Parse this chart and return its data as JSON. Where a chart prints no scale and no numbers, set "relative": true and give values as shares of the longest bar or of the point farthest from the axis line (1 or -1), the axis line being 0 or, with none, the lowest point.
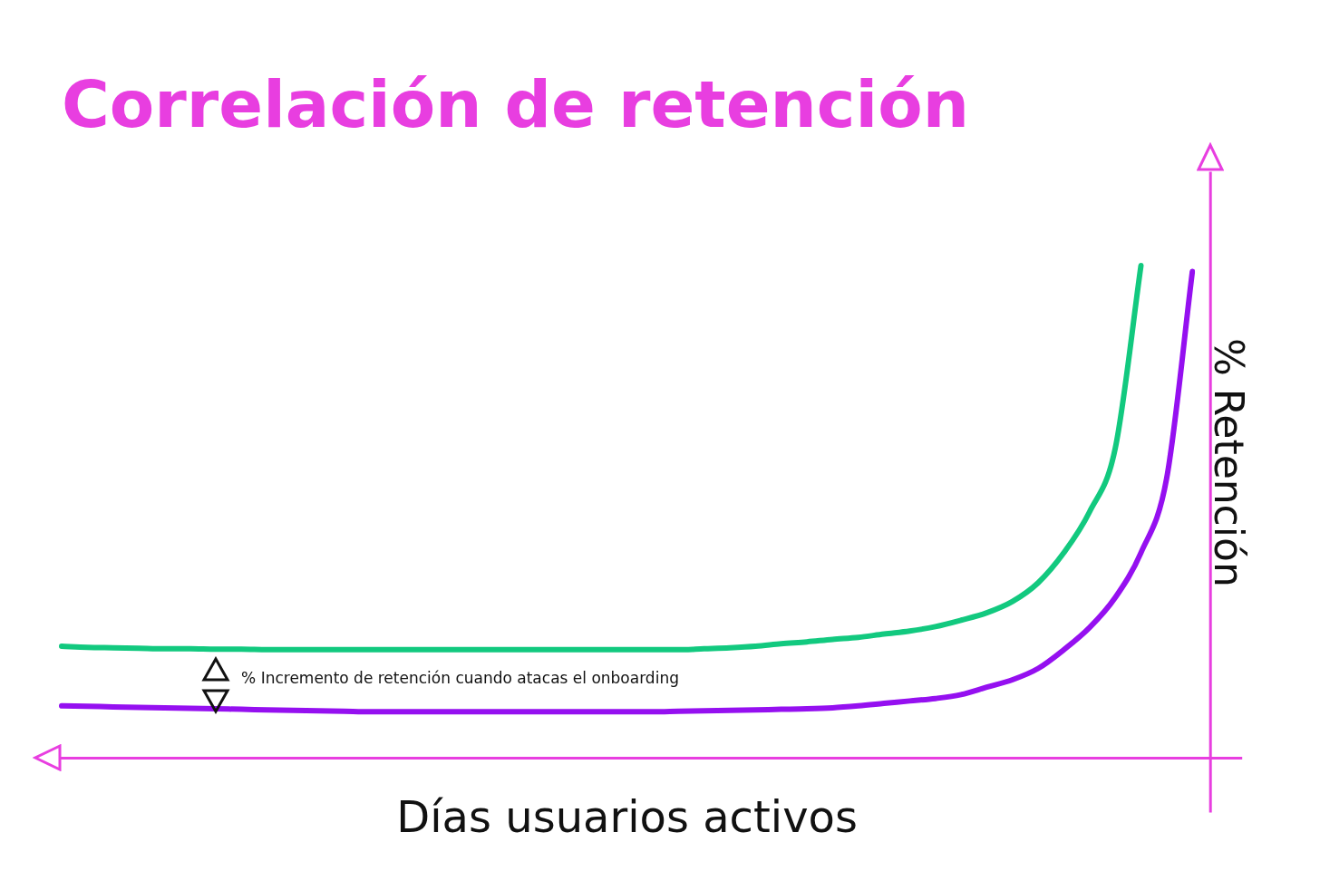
{
  "chart_data": {
    "type": "line",
    "title": "Correlación de retención",
    "xlabel": "Días usuarios activos",
    "ylabel": "% Retención",
    "relative": true,
    "legend": false,
    "grid": false,
    "marker": "none",
    "line_style": "solid",
    "categories": [
      null,
      null,
      null,
      null,
      null,
      null,
      null,
      null,
      null,
      null,
      null,
      null,
      null,
      null,
      null,
      null,
      null,
      null,
      null,
      null,
      null,
      null,
      null,
      null,
      null,
      null,
      null,
      null,
      null,
      null,
      null,
      null,
      null,
      null,
      null,
      null,
      null,
      null,
      null,
      null,
      null,
      null,
      null,
      null,
      null
    ],
    "series": [
      {
        "color": "#12c97f",
        "values": [
          0.227,
          0.225,
          0.224,
          0.223,
          0.222,
          0.222,
          0.221,
          0.221,
          0.22,
          0.22,
          0.22,
          0.22,
          0.22,
          0.22,
          0.22,
          0.22,
          0.22,
          0.22,
          0.22,
          0.22,
          0.22,
          0.22,
          0.22,
          0.22,
          0.22,
          0.222,
          0.224,
          0.227,
          0.232,
          0.236,
          0.241,
          0.245,
          0.252,
          0.258,
          0.267,
          0.28,
          0.295,
          0.318,
          0.356,
          0.417,
          0.5,
          0.629,
          1.0,
          null,
          null
        ]
      },
      {
        "color": "#9510f0",
        "values": [
          0.106,
          0.105,
          0.104,
          0.103,
          0.102,
          0.101,
          0.1,
          0.099,
          0.098,
          0.097,
          0.096,
          0.095,
          0.094,
          0.094,
          0.094,
          0.094,
          0.094,
          0.094,
          0.094,
          0.094,
          0.094,
          0.094,
          0.094,
          0.094,
          0.095,
          0.096,
          0.097,
          0.098,
          0.099,
          0.1,
          0.102,
          0.106,
          0.111,
          0.116,
          0.121,
          0.129,
          0.144,
          0.159,
          0.182,
          0.22,
          0.265,
          0.326,
          0.417,
          0.568,
          0.988
        ]
      }
    ],
    "annotations": [
      "% Incremento de retención cuando atacas el onboarding"
    ]
  }
}
